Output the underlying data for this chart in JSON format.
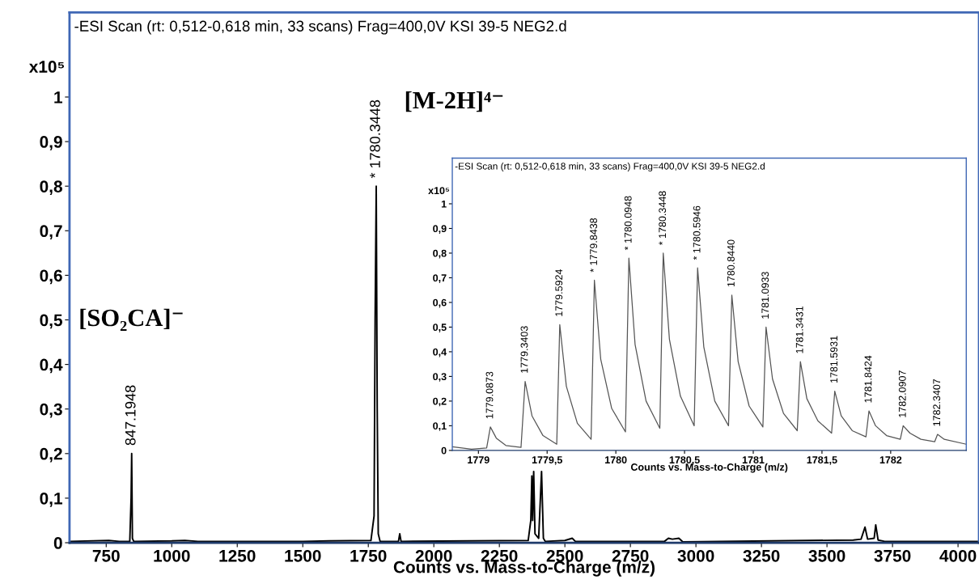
{
  "chart_data": [
    {
      "type": "line",
      "title": "-ESI Scan (rt: 0,512-0,618 min, 33 scans) Frag=400,0V KSI 39-5 NEG2.d",
      "xlabel": "Counts vs. Mass-to-Charge (m/z)",
      "ylabel": "x10⁵",
      "x": [
        610,
        760,
        800,
        840,
        845,
        847.2,
        850,
        855,
        1000,
        1050,
        1100,
        1500,
        1600,
        1760,
        1772,
        1776,
        1780.3,
        1784,
        1788,
        1795,
        1865,
        1870,
        1875,
        2360,
        2370,
        2374,
        2377,
        2381,
        2386,
        2400,
        2411,
        2418,
        2425,
        2500,
        2528,
        2540,
        2880,
        2895,
        2910,
        2935,
        2950,
        3600,
        3630,
        3645,
        3655,
        3680,
        3686,
        3695,
        3720,
        4080
      ],
      "series": [
        {
          "color": "#000000",
          "values": [
            0.003,
            0.005,
            0.003,
            0.003,
            0.1,
            0.2,
            0.01,
            0.003,
            0.004,
            0.005,
            0.003,
            0.003,
            0.004,
            0.005,
            0.06,
            0.5,
            0.8,
            0.3,
            0.02,
            0.003,
            0.003,
            0.02,
            0.003,
            0.005,
            0.05,
            0.15,
            0.05,
            0.16,
            0.02,
            0.01,
            0.16,
            0.01,
            0.003,
            0.005,
            0.01,
            0.003,
            0.003,
            0.01,
            0.008,
            0.01,
            0.002,
            0.006,
            0.008,
            0.035,
            0.008,
            0.01,
            0.04,
            0.006,
            0.003,
            0.003
          ]
        }
      ],
      "xlim": [
        610,
        4080
      ],
      "ylim": [
        0,
        1.19
      ],
      "xticks": [
        750,
        1000,
        1250,
        1500,
        1750,
        2000,
        2250,
        2500,
        2750,
        3000,
        3250,
        3500,
        3750,
        4000
      ],
      "yticks": [
        0,
        {
          "value": 0.1,
          "label": "0,1"
        },
        {
          "value": 0.2,
          "label": "0,2"
        },
        {
          "value": 0.3,
          "label": "0,3"
        },
        {
          "value": 0.4,
          "label": "0,4"
        },
        {
          "value": 0.5,
          "label": "0,5"
        },
        {
          "value": 0.6,
          "label": "0,6"
        },
        {
          "value": 0.7,
          "label": "0,7"
        },
        {
          "value": 0.8,
          "label": "0,8"
        },
        {
          "value": 0.9,
          "label": "0,9"
        },
        1
      ],
      "annotations": [
        {
          "text": "847.1948",
          "x": 847.2,
          "y": 0.2
        },
        {
          "text": "* 1780.3448",
          "x": 1780.3,
          "y": 0.8
        },
        "[M-2H]⁴⁻",
        "[SO₂CA]⁻"
      ],
      "grid": false,
      "legend": false,
      "marker": "none",
      "line_style": "solid"
    },
    {
      "type": "line",
      "title": "-ESI Scan (rt: 0,512-0,618 min, 33 scans) Frag=400,0V KSI 39-5 NEG2.d",
      "xlabel": "Counts vs. Mass-to-Charge (m/z)",
      "ylabel": "x10⁵",
      "x": [
        1778.81,
        1778.95,
        1779.06,
        1779.087,
        1779.13,
        1779.2,
        1779.31,
        1779.34,
        1779.39,
        1779.47,
        1779.57,
        1779.592,
        1779.64,
        1779.72,
        1779.82,
        1779.844,
        1779.89,
        1779.97,
        1780.07,
        1780.095,
        1780.14,
        1780.22,
        1780.32,
        1780.345,
        1780.39,
        1780.47,
        1780.57,
        1780.595,
        1780.64,
        1780.72,
        1780.82,
        1780.844,
        1780.89,
        1780.97,
        1781.07,
        1781.093,
        1781.14,
        1781.22,
        1781.32,
        1781.343,
        1781.39,
        1781.47,
        1781.57,
        1781.593,
        1781.64,
        1781.72,
        1781.82,
        1781.842,
        1781.89,
        1781.97,
        1782.07,
        1782.091,
        1782.14,
        1782.22,
        1782.32,
        1782.341,
        1782.39,
        1782.55
      ],
      "series": [
        {
          "color": "#555555",
          "values": [
            0.015,
            0.005,
            0.01,
            0.095,
            0.05,
            0.02,
            0.012,
            0.28,
            0.14,
            0.06,
            0.025,
            0.51,
            0.26,
            0.11,
            0.045,
            0.69,
            0.37,
            0.17,
            0.075,
            0.78,
            0.43,
            0.2,
            0.09,
            0.8,
            0.45,
            0.22,
            0.1,
            0.74,
            0.42,
            0.2,
            0.1,
            0.63,
            0.36,
            0.18,
            0.095,
            0.5,
            0.29,
            0.15,
            0.08,
            0.36,
            0.21,
            0.12,
            0.07,
            0.24,
            0.14,
            0.08,
            0.055,
            0.16,
            0.1,
            0.06,
            0.045,
            0.1,
            0.07,
            0.045,
            0.035,
            0.065,
            0.045,
            0.025
          ]
        }
      ],
      "xlim": [
        1778.81,
        1782.55
      ],
      "ylim": [
        0,
        1.185
      ],
      "xticks": [
        1779,
        {
          "value": 1779.5,
          "label": "1779,5"
        },
        1780,
        {
          "value": 1780.5,
          "label": "1780,5"
        },
        1781,
        {
          "value": 1781.5,
          "label": "1781,5"
        },
        1782
      ],
      "yticks": [
        0,
        {
          "value": 0.1,
          "label": "0,1"
        },
        {
          "value": 0.2,
          "label": "0,2"
        },
        {
          "value": 0.3,
          "label": "0,3"
        },
        {
          "value": 0.4,
          "label": "0,4"
        },
        {
          "value": 0.5,
          "label": "0,5"
        },
        {
          "value": 0.6,
          "label": "0,6"
        },
        {
          "value": 0.7,
          "label": "0,7"
        },
        {
          "value": 0.8,
          "label": "0,8"
        },
        {
          "value": 0.9,
          "label": "0,9"
        },
        1
      ],
      "annotations": [
        {
          "text": "1779.0873",
          "x": 1779.087,
          "y": 0.095
        },
        {
          "text": "1779.3403",
          "x": 1779.34,
          "y": 0.28
        },
        {
          "text": "1779.5924",
          "x": 1779.592,
          "y": 0.51
        },
        {
          "text": "* 1779.8438",
          "x": 1779.844,
          "y": 0.69
        },
        {
          "text": "* 1780.0948",
          "x": 1780.095,
          "y": 0.78
        },
        {
          "text": "* 1780.3448",
          "x": 1780.345,
          "y": 0.8
        },
        {
          "text": "* 1780.5946",
          "x": 1780.595,
          "y": 0.74
        },
        {
          "text": "1780.8440",
          "x": 1780.844,
          "y": 0.63
        },
        {
          "text": "1781.0933",
          "x": 1781.093,
          "y": 0.5
        },
        {
          "text": "1781.3431",
          "x": 1781.343,
          "y": 0.36
        },
        {
          "text": "1781.5931",
          "x": 1781.593,
          "y": 0.24
        },
        {
          "text": "1781.8424",
          "x": 1781.842,
          "y": 0.16
        },
        {
          "text": "1782.0907",
          "x": 1782.091,
          "y": 0.1
        },
        {
          "text": "1782.3407",
          "x": 1782.341,
          "y": 0.065
        }
      ],
      "grid": false,
      "legend": false,
      "marker": "none",
      "line_style": "solid"
    }
  ]
}
